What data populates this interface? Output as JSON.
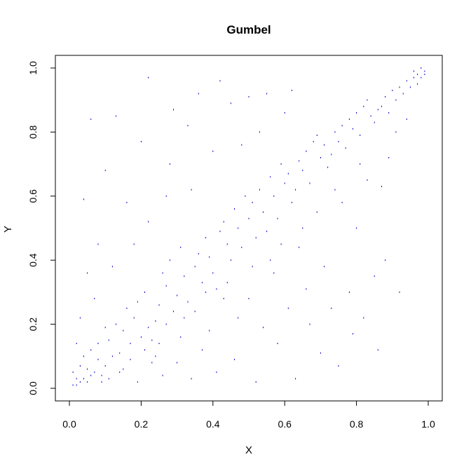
{
  "chart_data": {
    "type": "scatter",
    "title": "Gumbel",
    "xlabel": "X",
    "ylabel": "Y",
    "xlim": [
      0,
      1
    ],
    "ylim": [
      0,
      1
    ],
    "x_ticks": [
      "0.0",
      "0.2",
      "0.4",
      "0.6",
      "0.8",
      "1.0"
    ],
    "y_ticks": [
      "0.0",
      "0.2",
      "0.4",
      "0.6",
      "0.8",
      "1.0"
    ],
    "grid": false,
    "legend": "none",
    "point_color": "#0000CD",
    "marker": "dot",
    "series": [
      {
        "values": [
          [
            0.01,
            0.01
          ],
          [
            0.02,
            0.03
          ],
          [
            0.03,
            0.02
          ],
          [
            0.01,
            0.05
          ],
          [
            0.04,
            0.03
          ],
          [
            0.05,
            0.06
          ],
          [
            0.02,
            0.01
          ],
          [
            0.06,
            0.04
          ],
          [
            0.03,
            0.07
          ],
          [
            0.07,
            0.05
          ],
          [
            0.05,
            0.02
          ],
          [
            0.08,
            0.09
          ],
          [
            0.04,
            0.1
          ],
          [
            0.1,
            0.07
          ],
          [
            0.06,
            0.12
          ],
          [
            0.09,
            0.04
          ],
          [
            0.12,
            0.1
          ],
          [
            0.11,
            0.15
          ],
          [
            0.08,
            0.14
          ],
          [
            0.14,
            0.11
          ],
          [
            0.15,
            0.18
          ],
          [
            0.13,
            0.2
          ],
          [
            0.17,
            0.14
          ],
          [
            0.18,
            0.22
          ],
          [
            0.1,
            0.19
          ],
          [
            0.2,
            0.16
          ],
          [
            0.16,
            0.25
          ],
          [
            0.22,
            0.19
          ],
          [
            0.19,
            0.27
          ],
          [
            0.24,
            0.21
          ],
          [
            0.21,
            0.3
          ],
          [
            0.25,
            0.26
          ],
          [
            0.27,
            0.32
          ],
          [
            0.23,
            0.15
          ],
          [
            0.29,
            0.24
          ],
          [
            0.26,
            0.36
          ],
          [
            0.3,
            0.29
          ],
          [
            0.32,
            0.35
          ],
          [
            0.28,
            0.4
          ],
          [
            0.33,
            0.27
          ],
          [
            0.35,
            0.38
          ],
          [
            0.31,
            0.44
          ],
          [
            0.37,
            0.33
          ],
          [
            0.36,
            0.42
          ],
          [
            0.38,
            0.47
          ],
          [
            0.4,
            0.36
          ],
          [
            0.39,
            0.41
          ],
          [
            0.42,
            0.49
          ],
          [
            0.41,
            0.31
          ],
          [
            0.44,
            0.45
          ],
          [
            0.43,
            0.52
          ],
          [
            0.45,
            0.4
          ],
          [
            0.47,
            0.5
          ],
          [
            0.46,
            0.56
          ],
          [
            0.48,
            0.44
          ],
          [
            0.5,
            0.53
          ],
          [
            0.49,
            0.6
          ],
          [
            0.52,
            0.47
          ],
          [
            0.51,
            0.58
          ],
          [
            0.54,
            0.55
          ],
          [
            0.53,
            0.62
          ],
          [
            0.55,
            0.49
          ],
          [
            0.57,
            0.6
          ],
          [
            0.56,
            0.66
          ],
          [
            0.58,
            0.53
          ],
          [
            0.6,
            0.64
          ],
          [
            0.59,
            0.7
          ],
          [
            0.62,
            0.58
          ],
          [
            0.61,
            0.67
          ],
          [
            0.64,
            0.71
          ],
          [
            0.63,
            0.62
          ],
          [
            0.66,
            0.74
          ],
          [
            0.65,
            0.68
          ],
          [
            0.68,
            0.77
          ],
          [
            0.67,
            0.64
          ],
          [
            0.7,
            0.72
          ],
          [
            0.69,
            0.79
          ],
          [
            0.72,
            0.69
          ],
          [
            0.71,
            0.76
          ],
          [
            0.74,
            0.8
          ],
          [
            0.73,
            0.73
          ],
          [
            0.76,
            0.82
          ],
          [
            0.75,
            0.77
          ],
          [
            0.78,
            0.84
          ],
          [
            0.77,
            0.75
          ],
          [
            0.8,
            0.86
          ],
          [
            0.79,
            0.81
          ],
          [
            0.82,
            0.88
          ],
          [
            0.81,
            0.79
          ],
          [
            0.84,
            0.85
          ],
          [
            0.83,
            0.9
          ],
          [
            0.86,
            0.87
          ],
          [
            0.85,
            0.83
          ],
          [
            0.88,
            0.91
          ],
          [
            0.87,
            0.88
          ],
          [
            0.9,
            0.93
          ],
          [
            0.89,
            0.86
          ],
          [
            0.92,
            0.94
          ],
          [
            0.91,
            0.9
          ],
          [
            0.94,
            0.96
          ],
          [
            0.93,
            0.92
          ],
          [
            0.96,
            0.97
          ],
          [
            0.95,
            0.94
          ],
          [
            0.97,
            0.98
          ],
          [
            0.98,
            0.97
          ],
          [
            0.99,
            0.99
          ],
          [
            0.97,
            0.95
          ],
          [
            0.99,
            0.98
          ],
          [
            0.96,
            0.99
          ],
          [
            0.98,
            1.0
          ],
          [
            0.22,
            0.97
          ],
          [
            0.29,
            0.87
          ],
          [
            0.13,
            0.85
          ],
          [
            0.42,
            0.96
          ],
          [
            0.36,
            0.92
          ],
          [
            0.06,
            0.84
          ],
          [
            0.04,
            0.59
          ],
          [
            0.1,
            0.68
          ],
          [
            0.08,
            0.45
          ],
          [
            0.05,
            0.36
          ],
          [
            0.16,
            0.58
          ],
          [
            0.2,
            0.77
          ],
          [
            0.28,
            0.7
          ],
          [
            0.33,
            0.82
          ],
          [
            0.45,
            0.89
          ],
          [
            0.5,
            0.91
          ],
          [
            0.55,
            0.92
          ],
          [
            0.62,
            0.93
          ],
          [
            0.6,
            0.86
          ],
          [
            0.53,
            0.8
          ],
          [
            0.48,
            0.76
          ],
          [
            0.4,
            0.74
          ],
          [
            0.34,
            0.62
          ],
          [
            0.27,
            0.6
          ],
          [
            0.22,
            0.52
          ],
          [
            0.18,
            0.45
          ],
          [
            0.12,
            0.38
          ],
          [
            0.07,
            0.28
          ],
          [
            0.03,
            0.22
          ],
          [
            0.02,
            0.14
          ],
          [
            0.86,
            0.12
          ],
          [
            0.79,
            0.17
          ],
          [
            0.82,
            0.22
          ],
          [
            0.75,
            0.07
          ],
          [
            0.7,
            0.11
          ],
          [
            0.67,
            0.2
          ],
          [
            0.63,
            0.03
          ],
          [
            0.58,
            0.14
          ],
          [
            0.52,
            0.02
          ],
          [
            0.46,
            0.09
          ],
          [
            0.41,
            0.05
          ],
          [
            0.37,
            0.12
          ],
          [
            0.34,
            0.03
          ],
          [
            0.3,
            0.08
          ],
          [
            0.26,
            0.04
          ],
          [
            0.24,
            0.1
          ],
          [
            0.19,
            0.02
          ],
          [
            0.15,
            0.06
          ],
          [
            0.92,
            0.3
          ],
          [
            0.88,
            0.4
          ],
          [
            0.85,
            0.35
          ],
          [
            0.78,
            0.3
          ],
          [
            0.73,
            0.25
          ],
          [
            0.71,
            0.38
          ],
          [
            0.66,
            0.31
          ],
          [
            0.64,
            0.44
          ],
          [
            0.61,
            0.25
          ],
          [
            0.57,
            0.36
          ],
          [
            0.54,
            0.19
          ],
          [
            0.5,
            0.28
          ],
          [
            0.47,
            0.22
          ],
          [
            0.44,
            0.33
          ],
          [
            0.39,
            0.18
          ],
          [
            0.35,
            0.24
          ],
          [
            0.31,
            0.16
          ],
          [
            0.27,
            0.2
          ],
          [
            0.23,
            0.08
          ],
          [
            0.8,
            0.5
          ],
          [
            0.76,
            0.58
          ],
          [
            0.83,
            0.65
          ],
          [
            0.89,
            0.72
          ],
          [
            0.91,
            0.8
          ],
          [
            0.94,
            0.84
          ],
          [
            0.87,
            0.63
          ],
          [
            0.81,
            0.7
          ],
          [
            0.74,
            0.62
          ],
          [
            0.69,
            0.55
          ],
          [
            0.65,
            0.5
          ],
          [
            0.59,
            0.45
          ],
          [
            0.56,
            0.4
          ],
          [
            0.51,
            0.38
          ],
          [
            0.43,
            0.28
          ],
          [
            0.38,
            0.3
          ],
          [
            0.32,
            0.22
          ],
          [
            0.25,
            0.14
          ],
          [
            0.21,
            0.12
          ],
          [
            0.17,
            0.09
          ],
          [
            0.14,
            0.05
          ],
          [
            0.11,
            0.03
          ],
          [
            0.09,
            0.02
          ]
        ]
      }
    ]
  }
}
